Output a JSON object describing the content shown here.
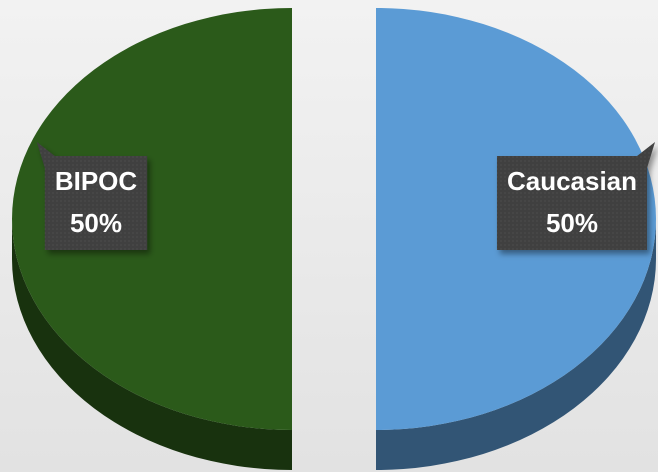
{
  "chart_data": {
    "type": "pie",
    "three_d": true,
    "exploded": true,
    "categories": [
      "Caucasian",
      "BIPOC"
    ],
    "values": [
      50,
      50
    ],
    "value_labels": [
      "50%",
      "50%"
    ],
    "colors": [
      "#5b9bd5",
      "#2b5a1a"
    ]
  }
}
